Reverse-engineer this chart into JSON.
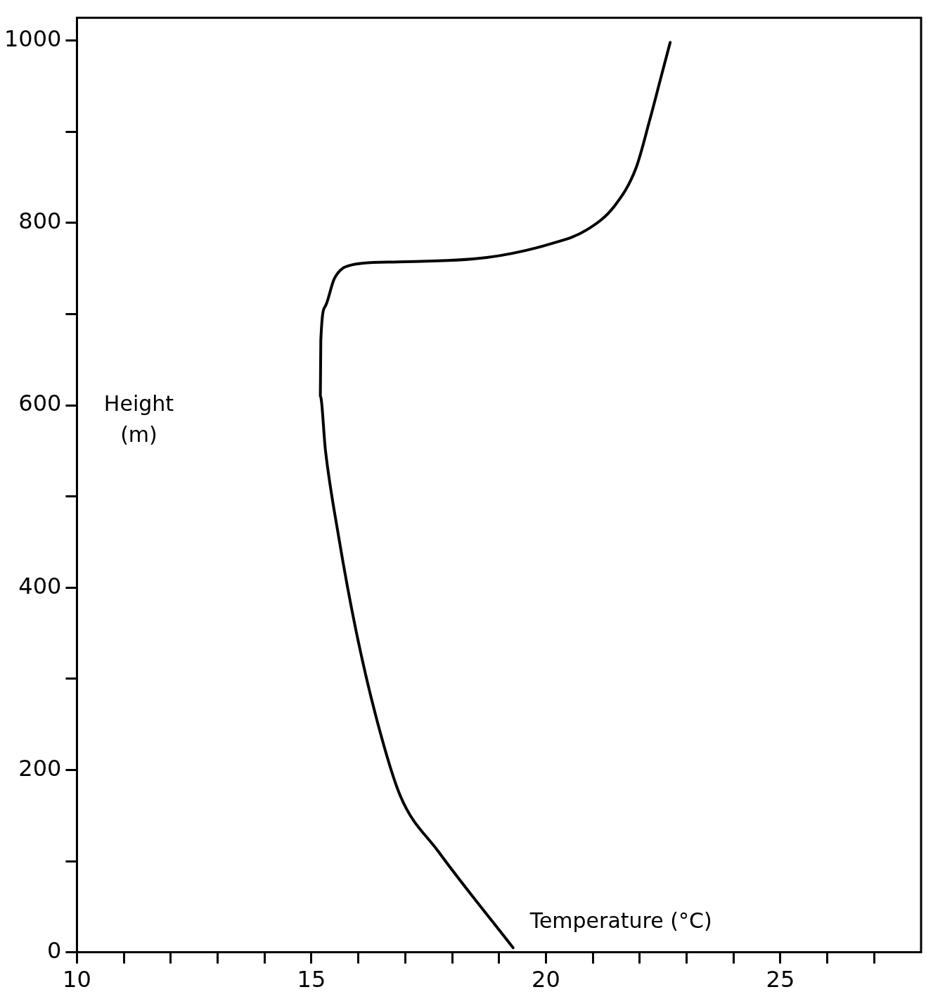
{
  "chart_data": {
    "type": "line",
    "xlabel": "Temperature (°C)",
    "ylabel": "Height\n(m)",
    "x": [
      19.3,
      17.7,
      16.9,
      16.4,
      15.95,
      15.57,
      15.3,
      15.19,
      15.2,
      15.3,
      15.49,
      15.87,
      16.63,
      18.74,
      20.1,
      20.86,
      21.47,
      21.92,
      22.22,
      22.45,
      22.65
    ],
    "series": [
      {
        "color": "#000000",
        "values": [
          5,
          111,
          171,
          254,
          353,
          459,
          550,
          610,
          671,
          709,
          739,
          754,
          757,
          762,
          777,
          792,
          819,
          860,
          914,
          959,
          998
        ]
      }
    ],
    "xlim": [
      10,
      28
    ],
    "xticks": [
      10,
      {
        "value": 11,
        "label": null
      },
      {
        "value": 12,
        "label": null
      },
      {
        "value": 13,
        "label": null
      },
      {
        "value": 14,
        "label": null
      },
      15,
      {
        "value": 16,
        "label": null
      },
      {
        "value": 17,
        "label": null
      },
      {
        "value": 18,
        "label": null
      },
      {
        "value": 19,
        "label": null
      },
      20,
      {
        "value": 21,
        "label": null
      },
      {
        "value": 22,
        "label": null
      },
      {
        "value": 23,
        "label": null
      },
      {
        "value": 24,
        "label": null
      },
      25,
      {
        "value": 26,
        "label": null
      },
      {
        "value": 27,
        "label": null
      }
    ],
    "ylim": [
      0,
      1025
    ],
    "yticks": [
      0,
      {
        "value": 100,
        "label": null
      },
      200,
      {
        "value": 300,
        "label": null
      },
      400,
      {
        "value": 500,
        "label": null
      },
      600,
      {
        "value": 700,
        "label": null
      },
      800,
      {
        "value": 900,
        "label": null
      },
      1000
    ],
    "marker": "none",
    "line_style": "solid",
    "grid": false,
    "legend": false
  }
}
